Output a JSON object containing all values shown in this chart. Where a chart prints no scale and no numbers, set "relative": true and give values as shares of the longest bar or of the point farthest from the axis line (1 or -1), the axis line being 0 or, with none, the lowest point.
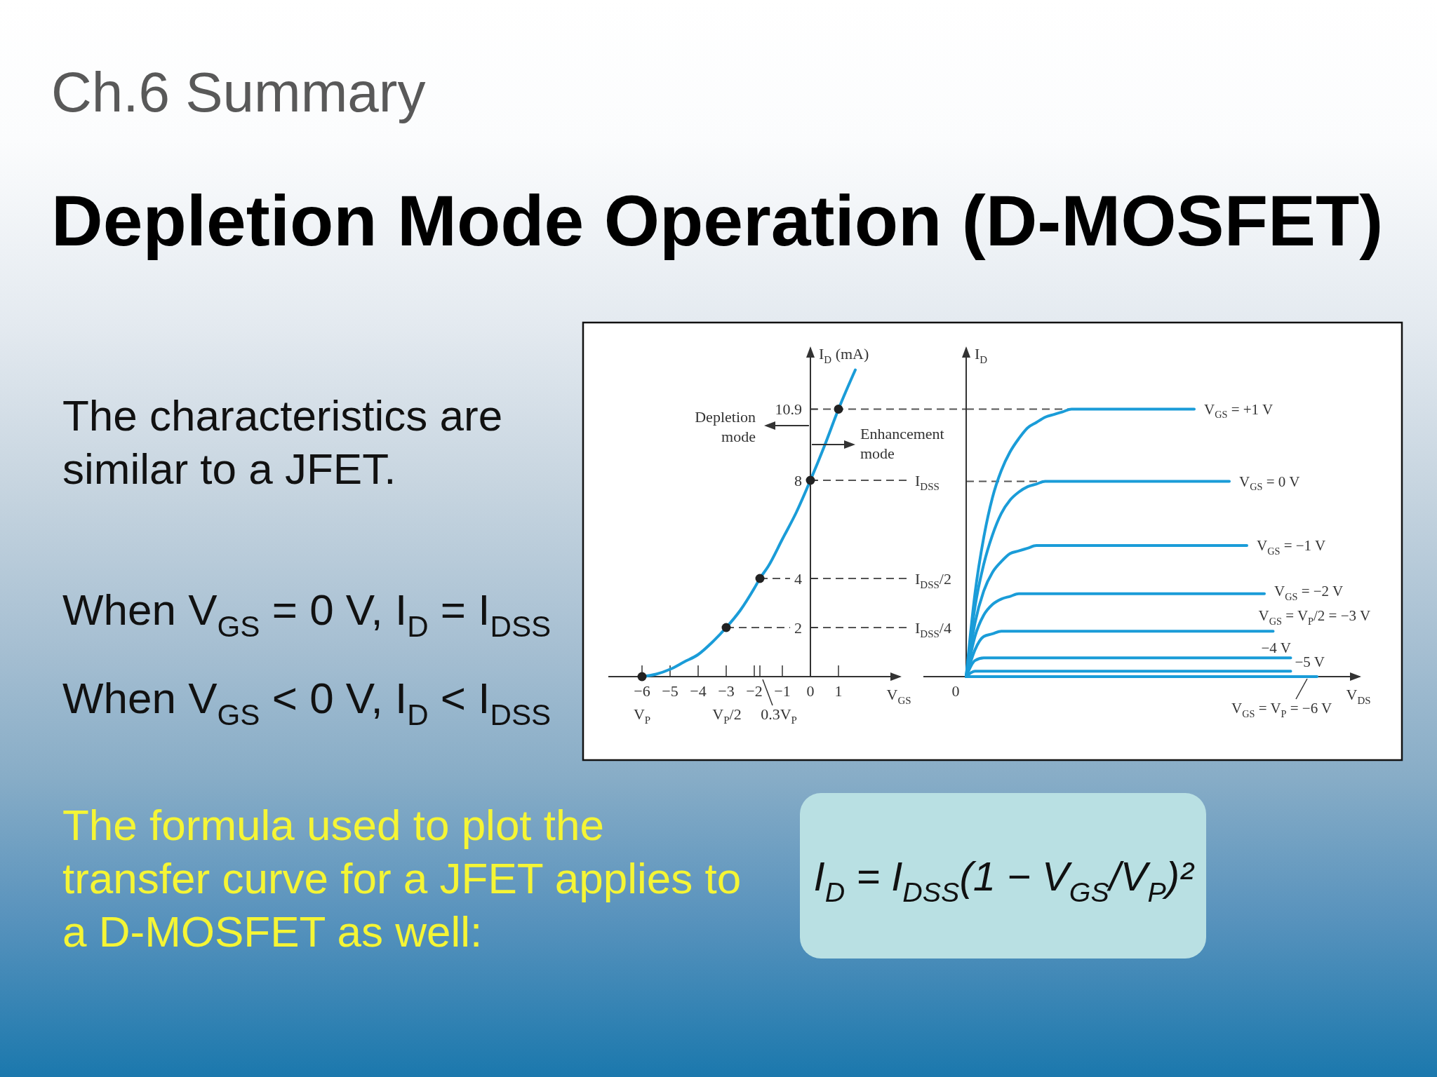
{
  "chart_data": [
    {
      "type": "line",
      "title": "Ch.6 Summary",
      "subtitle": "Depletion Mode Operation (D-MOSFET)",
      "xlabel": "V$_{GS}$",
      "ylabel": "I$_{D}$ (mA)",
      "x": [
        -6,
        -5.5,
        -5,
        -4.5,
        -4,
        -3.5,
        -3,
        -2.5,
        -2,
        -1.8,
        -1.5,
        -1,
        -0.5,
        0,
        0.5,
        1,
        1.6
      ],
      "series": [
        {
          "color": "#1a9cd8",
          "values": [
            0,
            0.1,
            0.3,
            0.6,
            0.9,
            1.4,
            2,
            2.7,
            3.6,
            4,
            4.5,
            5.6,
            6.7,
            8,
            9.4,
            10.9,
            12.5
          ]
        },
        {
          "type": "scatter",
          "color": "#222222",
          "x": [
            -6,
            -3,
            -1.8,
            0,
            1
          ],
          "values": [
            0,
            2,
            4,
            8,
            10.9
          ]
        }
      ],
      "xlim": [
        -7.2,
        3.2
      ],
      "ylim": [
        0,
        13.4
      ],
      "xticks": [
        {
          "value": -6,
          "label": "−6"
        },
        {
          "value": -5,
          "label": "−5"
        },
        {
          "value": -4,
          "label": "−4"
        },
        {
          "value": -3,
          "label": "−3"
        },
        {
          "value": -2,
          "label": "−2"
        },
        {
          "value": -1.8,
          "label": null
        },
        {
          "value": -1,
          "label": "−1"
        },
        0,
        1
      ],
      "yticks": [
        2,
        4,
        8,
        10.9
      ],
      "ref_lines": [
        {
          "axis": "y",
          "value": 10.9,
          "color": "#555555",
          "line_style": "dashed"
        },
        {
          "axis": "y",
          "value": 8,
          "label": "I$_{DSS}$",
          "color": "#555555",
          "line_style": "dashed"
        },
        {
          "axis": "y",
          "value": 4,
          "label": "I$_{DSS}$/2",
          "color": "#555555",
          "line_style": "dashed"
        },
        {
          "axis": "y",
          "value": 2,
          "label": "I$_{DSS}$/4",
          "color": "#555555",
          "line_style": "dashed"
        }
      ],
      "annotations": [
        "The characteristics are similar to a JFET.",
        "When V$_{GS}$ = 0 V, I$_{D}$ = I$_{DSS}$",
        "When V$_{GS}$ < 0 V, I$_{D}$ < I$_{DSS}$",
        "The formula used to plot the transfer curve for a JFET applies to a D-MOSFET as well:",
        "I$_{D}$ = I$_{DSS}$(1 − V$_{GS}$/V$_{P}$)²",
        "Depletion mode",
        "Enhancement mode",
        {
          "text": "V$_{P}$",
          "x": -6,
          "y": 0
        },
        "V$_{P}$/2",
        "0.3V$_{P}$"
      ]
    },
    {
      "type": "line",
      "xlabel": "V$_{DS}$",
      "ylabel": "I$_{D}$",
      "relative": true,
      "categories": [
        null,
        null,
        null,
        null,
        null,
        null,
        null,
        null,
        null,
        null,
        null,
        null,
        null,
        null,
        null,
        null,
        null,
        null,
        null,
        null,
        null,
        null,
        null,
        null,
        null,
        null,
        null,
        null,
        null,
        null,
        null,
        null,
        null,
        null,
        null,
        null,
        null,
        null,
        null,
        null,
        null
      ],
      "ref_lines": [
        {
          "axis": "y",
          "value": 1,
          "color": "#555555",
          "line_style": "dashed"
        },
        {
          "axis": "y",
          "value": 0.73,
          "color": "#555555",
          "line_style": "dashed"
        }
      ],
      "annotations": [
        "0"
      ],
      "series": [
        {
          "name": "V$_{GS}$ = +1 V",
          "color": "#1a9cd8",
          "values": [
            0,
            0.31,
            0.52,
            0.67,
            0.77,
            0.84,
            0.89,
            0.93,
            0.95,
            0.97,
            0.98,
            0.99,
            1,
            1,
            1,
            1,
            1,
            1,
            1,
            1,
            1,
            1,
            1,
            1,
            1,
            1,
            1,
            null,
            null,
            null,
            null,
            null,
            null,
            null,
            null,
            null,
            null,
            null,
            null,
            null,
            null
          ]
        },
        {
          "name": "V$_{GS}$ = 0 V",
          "color": "#1a9cd8",
          "values": [
            0,
            0.26,
            0.42,
            0.53,
            0.61,
            0.66,
            0.69,
            0.71,
            0.72,
            0.73,
            0.73,
            0.73,
            0.73,
            0.73,
            0.73,
            0.73,
            0.73,
            0.73,
            0.73,
            0.73,
            0.73,
            0.73,
            0.73,
            0.73,
            0.73,
            0.73,
            0.73,
            0.73,
            0.73,
            0.73,
            0.73,
            null,
            null,
            null,
            null,
            null,
            null,
            null,
            null,
            null,
            null
          ]
        },
        {
          "name": "V$_{GS}$ = −1 V",
          "color": "#1a9cd8",
          "values": [
            0,
            0.2,
            0.32,
            0.39,
            0.43,
            0.46,
            0.47,
            0.48,
            0.49,
            0.49,
            0.49,
            0.49,
            0.49,
            0.49,
            0.49,
            0.49,
            0.49,
            0.49,
            0.49,
            0.49,
            0.49,
            0.49,
            0.49,
            0.49,
            0.49,
            0.49,
            0.49,
            0.49,
            0.49,
            0.49,
            0.49,
            0.49,
            0.49,
            null,
            null,
            null,
            null,
            null,
            null,
            null,
            null
          ]
        },
        {
          "name": "V$_{GS}$ = −2 V",
          "color": "#1a9cd8",
          "values": [
            0,
            0.15,
            0.23,
            0.27,
            0.29,
            0.3,
            0.31,
            0.31,
            0.31,
            0.31,
            0.31,
            0.31,
            0.31,
            0.31,
            0.31,
            0.31,
            0.31,
            0.31,
            0.31,
            0.31,
            0.31,
            0.31,
            0.31,
            0.31,
            0.31,
            0.31,
            0.31,
            0.31,
            0.31,
            0.31,
            0.31,
            0.31,
            0.31,
            0.31,
            0.31,
            null,
            null,
            null,
            null,
            null,
            null
          ]
        },
        {
          "name": "V$_{GS}$ = V$_{P}$/2 = −3 V",
          "color": "#1a9cd8",
          "values": [
            0,
            0.1,
            0.15,
            0.16,
            0.17,
            0.17,
            0.17,
            0.17,
            0.17,
            0.17,
            0.17,
            0.17,
            0.17,
            0.17,
            0.17,
            0.17,
            0.17,
            0.17,
            0.17,
            0.17,
            0.17,
            0.17,
            0.17,
            0.17,
            0.17,
            0.17,
            0.17,
            0.17,
            0.17,
            0.17,
            0.17,
            0.17,
            0.17,
            0.17,
            0.17,
            0.17,
            null,
            null,
            null,
            null,
            null
          ]
        },
        {
          "name": "−4 V",
          "color": "#1a9cd8",
          "values": [
            0,
            0.06,
            0.07,
            0.07,
            0.07,
            0.07,
            0.07,
            0.07,
            0.07,
            0.07,
            0.07,
            0.07,
            0.07,
            0.07,
            0.07,
            0.07,
            0.07,
            0.07,
            0.07,
            0.07,
            0.07,
            0.07,
            0.07,
            0.07,
            0.07,
            0.07,
            0.07,
            0.07,
            0.07,
            0.07,
            0.07,
            0.07,
            0.07,
            0.07,
            0.07,
            0.07,
            0.07,
            0.07,
            null,
            null,
            null
          ]
        },
        {
          "name": "−5 V",
          "color": "#1a9cd8",
          "values": [
            0,
            0.02,
            0.02,
            0.02,
            0.02,
            0.02,
            0.02,
            0.02,
            0.02,
            0.02,
            0.02,
            0.02,
            0.02,
            0.02,
            0.02,
            0.02,
            0.02,
            0.02,
            0.02,
            0.02,
            0.02,
            0.02,
            0.02,
            0.02,
            0.02,
            0.02,
            0.02,
            0.02,
            0.02,
            0.02,
            0.02,
            0.02,
            0.02,
            0.02,
            0.02,
            0.02,
            0.02,
            0.02,
            null,
            null,
            null
          ]
        },
        {
          "name": "V$_{GS}$ = V$_{P}$ = −6 V",
          "color": "#1a9cd8",
          "values": [
            0,
            0,
            0,
            0,
            0,
            0,
            0,
            0,
            0,
            0,
            0,
            0,
            0,
            0,
            0,
            0,
            0,
            0,
            0,
            0,
            0,
            0,
            0,
            0,
            0,
            0,
            0,
            0,
            0,
            0,
            0,
            0,
            0,
            0,
            0,
            0,
            0,
            0,
            0,
            0,
            0
          ]
        }
      ]
    }
  ]
}
